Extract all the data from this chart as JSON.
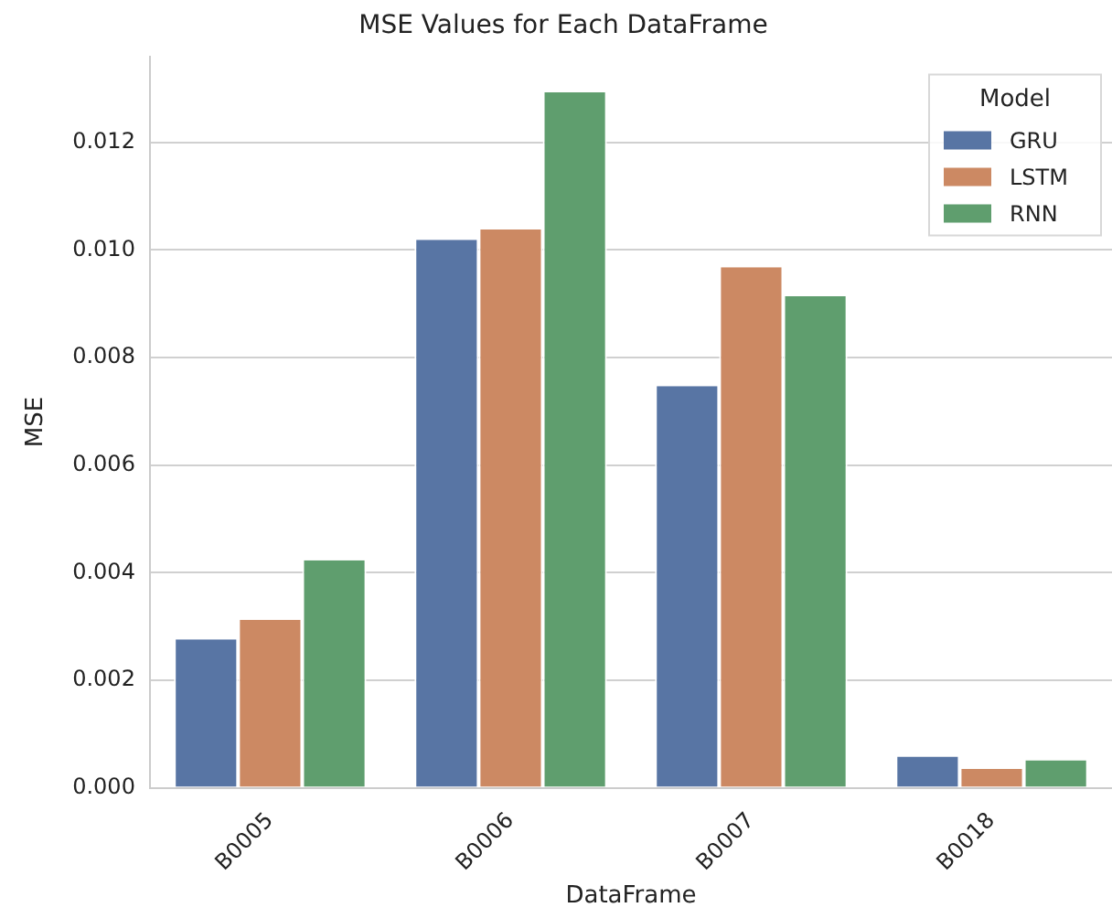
{
  "chart_data": {
    "type": "bar",
    "title": "MSE Values for Each DataFrame",
    "xlabel": "DataFrame",
    "ylabel": "MSE",
    "legend_title": "Model",
    "categories": [
      "B0005",
      "B0006",
      "B0007",
      "B0018"
    ],
    "series": [
      {
        "name": "GRU",
        "color": "#5875a4",
        "values": [
          0.00276,
          0.01019,
          0.00747,
          0.00058
        ]
      },
      {
        "name": "LSTM",
        "color": "#cc8963",
        "values": [
          0.00312,
          0.01038,
          0.00968,
          0.00035
        ]
      },
      {
        "name": "RNN",
        "color": "#5f9e6e",
        "values": [
          0.00423,
          0.01293,
          0.00914,
          0.00051
        ]
      }
    ],
    "ylim": [
      0,
      0.0136
    ],
    "yticks": [
      {
        "value": 0,
        "label": "0.000"
      },
      0.002,
      0.004,
      0.006,
      0.008,
      {
        "value": 0.01,
        "label": "0.010"
      },
      0.012
    ],
    "grid": "y",
    "legend": "top right"
  }
}
